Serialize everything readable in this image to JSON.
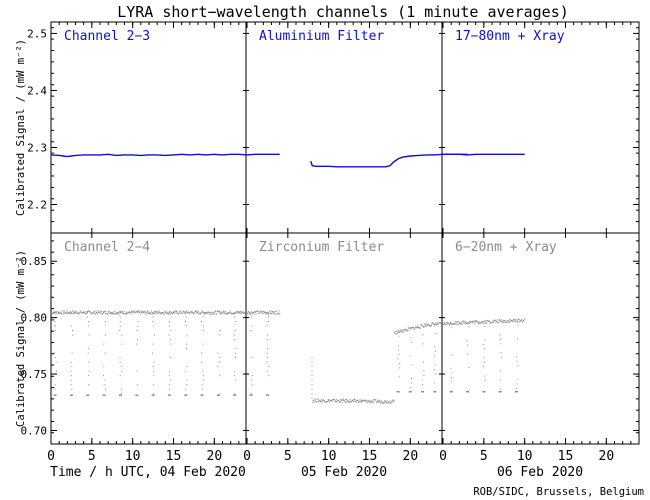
{
  "title": "LYRA short−wavelength channels (1 minute averages)",
  "credit": "ROB/SIDC, Brussels, Belgium",
  "colors": {
    "top": "#1010c8",
    "bottom": "#8c8c8c",
    "axes": "#000000"
  },
  "chart_data": [
    {
      "type": "line",
      "row": "top",
      "ylabel": "Calibrated Signal / (mW m⁻²)",
      "ylim": [
        2.15,
        2.52
      ],
      "yticks": [
        2.2,
        2.3,
        2.4,
        2.5
      ],
      "ytick_labels": [
        "2.2",
        "2.3",
        "2.4",
        "2.5"
      ],
      "xlim": [
        0,
        72
      ],
      "series": [
        {
          "name": "Channel 2−3",
          "x": [
            0,
            1,
            1.5,
            2,
            2.5,
            3,
            4,
            5,
            6,
            7,
            8,
            9,
            10,
            11,
            12,
            13,
            14,
            15,
            16,
            17,
            18,
            19,
            20,
            21,
            22,
            23,
            24,
            25,
            26,
            27,
            28
          ],
          "y": [
            2.287,
            2.286,
            2.285,
            2.284,
            2.285,
            2.286,
            2.287,
            2.287,
            2.287,
            2.288,
            2.286,
            2.287,
            2.287,
            2.286,
            2.287,
            2.287,
            2.286,
            2.287,
            2.288,
            2.287,
            2.288,
            2.287,
            2.288,
            2.287,
            2.288,
            2.288,
            2.287,
            2.288,
            2.288,
            2.288,
            2.288
          ]
        },
        {
          "name": "Aluminium Filter",
          "x": [
            31.8,
            32,
            32.5,
            33,
            34,
            35,
            36,
            37,
            38,
            39,
            40,
            41,
            41.5,
            42,
            42.5,
            43,
            44,
            45,
            46,
            47,
            48,
            49,
            50,
            51
          ],
          "y": [
            2.276,
            2.268,
            2.267,
            2.267,
            2.267,
            2.266,
            2.266,
            2.266,
            2.266,
            2.266,
            2.266,
            2.266,
            2.268,
            2.275,
            2.28,
            2.283,
            2.285,
            2.286,
            2.287,
            2.287,
            2.288,
            2.288,
            2.288,
            2.288
          ]
        },
        {
          "name": "17−80nm + Xray",
          "x": [
            48,
            49,
            50,
            51,
            52,
            53,
            54,
            55,
            56,
            57,
            58
          ],
          "y": [
            2.288,
            2.288,
            2.288,
            2.287,
            2.288,
            2.288,
            2.288,
            2.288,
            2.288,
            2.288,
            2.288
          ]
        }
      ]
    },
    {
      "type": "scatter",
      "row": "bottom",
      "ylabel": "Calibrated Signal / (mW m⁻²)",
      "xlabel": "Time / h UTC, 04 Feb 2020",
      "ylim": [
        0.688,
        0.875
      ],
      "yticks": [
        0.7,
        0.75,
        0.8,
        0.85
      ],
      "ytick_labels": [
        "0.70",
        "0.75",
        "0.80",
        "0.85"
      ],
      "xlim": [
        0,
        72
      ],
      "xticks": [
        0,
        5,
        10,
        15,
        20,
        24,
        29,
        34,
        39,
        44,
        48,
        53,
        58,
        63,
        68
      ],
      "xtick_labels": [
        "0",
        "5",
        "10",
        "15",
        "20",
        "0",
        "5",
        "10",
        "15",
        "20",
        "0",
        "5",
        "10",
        "15",
        "20"
      ],
      "date_labels": [
        "05 Feb 2020",
        "06 Feb 2020"
      ],
      "series": [
        {
          "name": "Channel 2−4",
          "baseline": [
            [
              0,
              0.805
            ],
            [
              28,
              0.805
            ]
          ],
          "dips_x": [
            0.5,
            2.5,
            4.5,
            6.5,
            8.5,
            10.5,
            12.5,
            14.5,
            16.5,
            18.5,
            20.5,
            22.5,
            24.5,
            26.5
          ],
          "dip_min": 0.732
        },
        {
          "name": "Zirconium Filter",
          "baseline": [
            [
              32,
              0.727
            ],
            [
              42,
              0.726
            ]
          ],
          "dips_x": [],
          "dip_min": 0.727
        },
        {
          "name": "6−20nm + Xray",
          "baseline": [
            [
              42,
              0.787
            ],
            [
              46,
              0.794
            ],
            [
              50,
              0.796
            ],
            [
              58,
              0.798
            ]
          ],
          "dips_x": [
            42.5,
            44,
            45.5,
            47,
            49,
            51,
            53,
            55,
            57
          ],
          "dip_min": 0.735
        }
      ]
    }
  ]
}
